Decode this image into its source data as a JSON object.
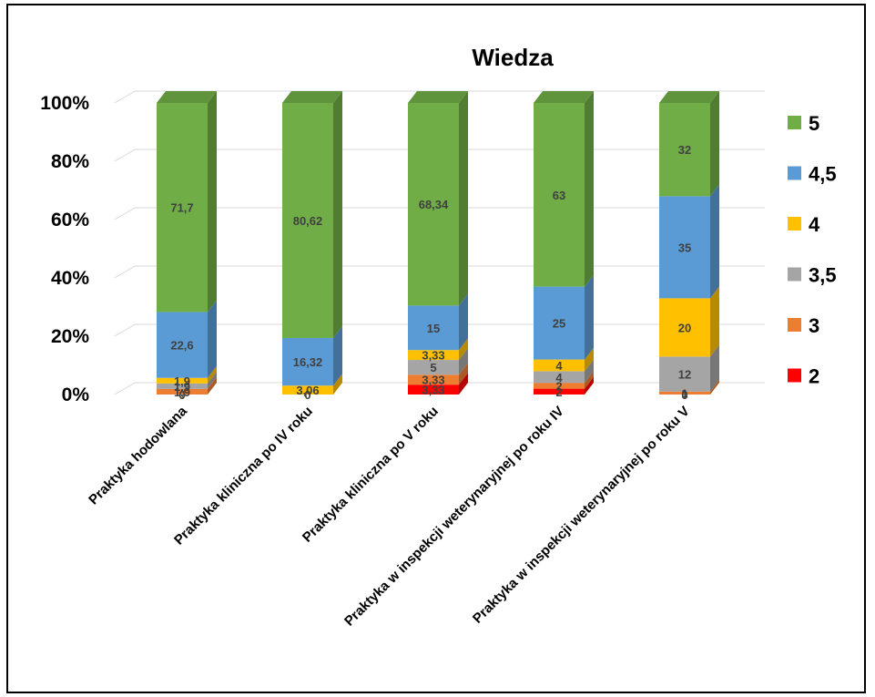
{
  "chart_data": {
    "type": "bar",
    "stacked": "percent",
    "three_d": true,
    "title": "Wiedza",
    "xlabel": "",
    "ylabel": "",
    "ylim": [
      0,
      100
    ],
    "yticks": [
      "0%",
      "20%",
      "40%",
      "60%",
      "80%",
      "100%"
    ],
    "grid": true,
    "legend_position": "right",
    "categories": [
      "Praktyka hodowlana",
      "Praktyka kliniczna po IV roku",
      "Praktyka kliniczna po V roku",
      "Praktyka w inspekcji weterynaryjnej po roku IV",
      "Praktyka w inspekcji weterynaryjnej po roku V"
    ],
    "series": [
      {
        "name": "2",
        "color": "#FF0000",
        "values": [
          0,
          0,
          3.33,
          2,
          0
        ],
        "labels": [
          "0",
          "0",
          "3,33",
          "2",
          "0"
        ]
      },
      {
        "name": "3",
        "color": "#ED7D31",
        "values": [
          1.9,
          0,
          3.33,
          2,
          1
        ],
        "labels": [
          "1,9",
          "",
          "3,33",
          "2",
          "1"
        ]
      },
      {
        "name": "3,5",
        "color": "#A5A5A5",
        "values": [
          1.9,
          0,
          5,
          4,
          12
        ],
        "labels": [
          "1,9",
          "",
          "5",
          "4",
          "12"
        ]
      },
      {
        "name": "4",
        "color": "#FFC000",
        "values": [
          1.9,
          3.06,
          3.33,
          4,
          20
        ],
        "labels": [
          "1,9",
          "3,06",
          "3,33",
          "4",
          "20"
        ]
      },
      {
        "name": "4,5",
        "color": "#5B9BD5",
        "values": [
          22.6,
          16.32,
          15,
          25,
          35
        ],
        "labels": [
          "22,6",
          "16,32",
          "15",
          "25",
          "35"
        ]
      },
      {
        "name": "5",
        "color": "#70AD47",
        "values": [
          71.7,
          80.62,
          68.34,
          63,
          32
        ],
        "labels": [
          "71,7",
          "80,62",
          "68,34",
          "63",
          "32"
        ]
      }
    ],
    "legend_order": [
      "5",
      "4,5",
      "4",
      "3,5",
      "3",
      "2"
    ]
  }
}
